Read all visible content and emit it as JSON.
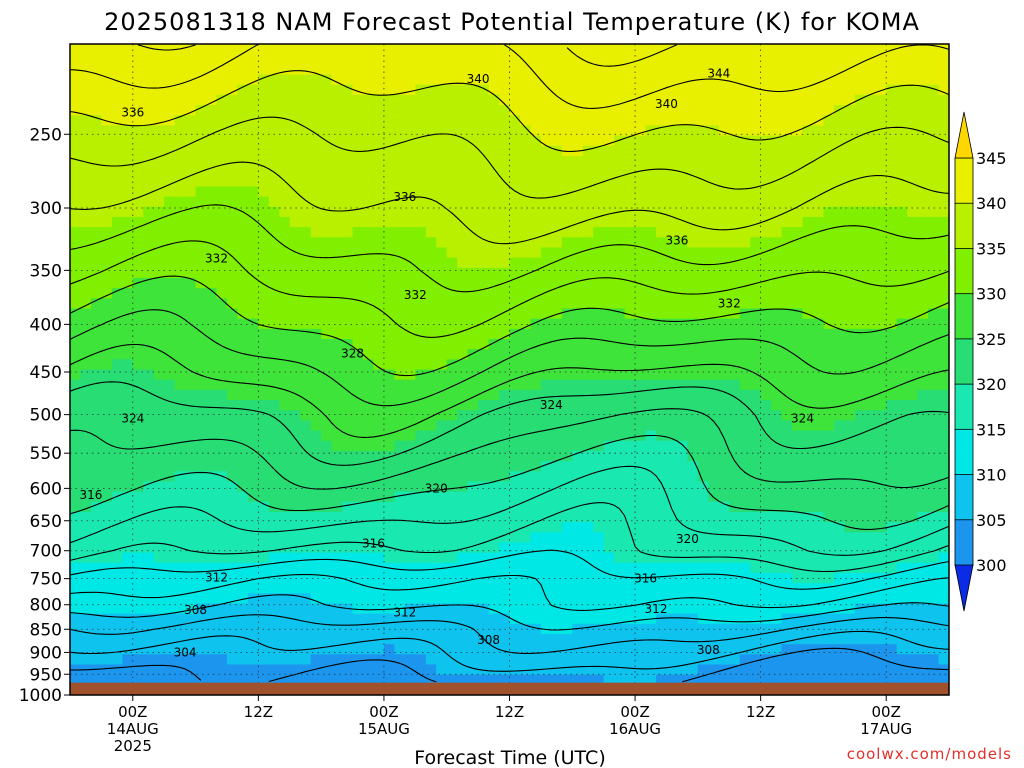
{
  "title": "2025081318 NAM Forecast Potential Temperature (K) for KOMA",
  "credit": "coolwx.com/models",
  "colors": {
    "ground": "#a0522d",
    "contour": "#000000",
    "credit": "#e0302a"
  },
  "chart_data": {
    "type": "heatmap",
    "title": "2025081318 NAM Forecast Potential Temperature (K) for KOMA",
    "xlabel": "Forecast Time (UTC)",
    "ylabel": "",
    "x_ticks": [
      {
        "hour": 6,
        "lines": [
          "00Z",
          "14AUG",
          "2025"
        ]
      },
      {
        "hour": 18,
        "lines": [
          "12Z"
        ]
      },
      {
        "hour": 30,
        "lines": [
          "00Z",
          "15AUG"
        ]
      },
      {
        "hour": 42,
        "lines": [
          "12Z"
        ]
      },
      {
        "hour": 54,
        "lines": [
          "00Z",
          "16AUG"
        ]
      },
      {
        "hour": 66,
        "lines": [
          "12Z"
        ]
      },
      {
        "hour": 78,
        "lines": [
          "00Z",
          "17AUG"
        ]
      }
    ],
    "xlim_hours": [
      0,
      84
    ],
    "y_ticks": [
      250,
      300,
      350,
      400,
      450,
      500,
      550,
      600,
      650,
      700,
      750,
      800,
      850,
      900,
      950,
      1000
    ],
    "ylim_hpa": [
      200,
      1000
    ],
    "ground_level_hpa": 970,
    "grid": true,
    "levels": [
      300,
      305,
      310,
      315,
      320,
      325,
      330,
      335,
      340,
      345
    ],
    "colormap": [
      "#0a2ce6",
      "#1f66eb",
      "#1c95ee",
      "#0fc3ef",
      "#00e8e6",
      "#19e8b0",
      "#27dd74",
      "#3fe43a",
      "#80f000",
      "#b8f000",
      "#e8f000",
      "#ffd700"
    ],
    "colorbar_labels": [
      "345",
      "340",
      "335",
      "330",
      "325",
      "320",
      "315",
      "310",
      "305",
      "300"
    ],
    "profile_hpa": [
      1000,
      950,
      900,
      850,
      800,
      750,
      700,
      650,
      600,
      550,
      500,
      450,
      400,
      350,
      300,
      250,
      200
    ],
    "profile_theta_k": [
      302,
      304,
      306,
      308,
      311,
      313,
      316,
      318,
      320,
      322,
      324,
      327,
      330,
      333,
      336,
      339,
      343
    ],
    "contour_labels": [
      {
        "text": "340",
        "hour": 39,
        "hpa": 218
      },
      {
        "text": "344",
        "hour": 62,
        "hpa": 215
      },
      {
        "text": "340",
        "hour": 57,
        "hpa": 232
      },
      {
        "text": "336",
        "hour": 6,
        "hpa": 237
      },
      {
        "text": "336",
        "hour": 32,
        "hpa": 292
      },
      {
        "text": "336",
        "hour": 58,
        "hpa": 325
      },
      {
        "text": "332",
        "hour": 14,
        "hpa": 340
      },
      {
        "text": "332",
        "hour": 33,
        "hpa": 372
      },
      {
        "text": "332",
        "hour": 63,
        "hpa": 380
      },
      {
        "text": "328",
        "hour": 27,
        "hpa": 430
      },
      {
        "text": "324",
        "hour": 6,
        "hpa": 505
      },
      {
        "text": "324",
        "hour": 46,
        "hpa": 488
      },
      {
        "text": "324",
        "hour": 70,
        "hpa": 505
      },
      {
        "text": "320",
        "hour": 35,
        "hpa": 600
      },
      {
        "text": "320",
        "hour": 59,
        "hpa": 680
      },
      {
        "text": "316",
        "hour": 2,
        "hpa": 610
      },
      {
        "text": "316",
        "hour": 29,
        "hpa": 688
      },
      {
        "text": "316",
        "hour": 55,
        "hpa": 750
      },
      {
        "text": "312",
        "hour": 14,
        "hpa": 748
      },
      {
        "text": "312",
        "hour": 32,
        "hpa": 815
      },
      {
        "text": "312",
        "hour": 56,
        "hpa": 808
      },
      {
        "text": "308",
        "hour": 12,
        "hpa": 810
      },
      {
        "text": "308",
        "hour": 40,
        "hpa": 873
      },
      {
        "text": "308",
        "hour": 61,
        "hpa": 895
      },
      {
        "text": "304",
        "hour": 11,
        "hpa": 900
      }
    ]
  }
}
